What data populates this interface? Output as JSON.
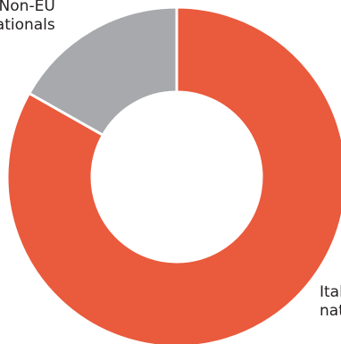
{
  "chart_data": {
    "type": "pie",
    "variant": "donut",
    "slices": [
      {
        "label_lines": [
          "Italian",
          "nationals"
        ],
        "value": 83.2,
        "color": "#ea5a3c"
      },
      {
        "label_lines": [
          "Non-EU",
          "nationals"
        ],
        "value": 16.8,
        "color": "#a7a9ad"
      }
    ],
    "start": "12 o'clock",
    "direction": "clockwise",
    "separator_color": "#ffffff",
    "title": "",
    "legend": "none"
  }
}
